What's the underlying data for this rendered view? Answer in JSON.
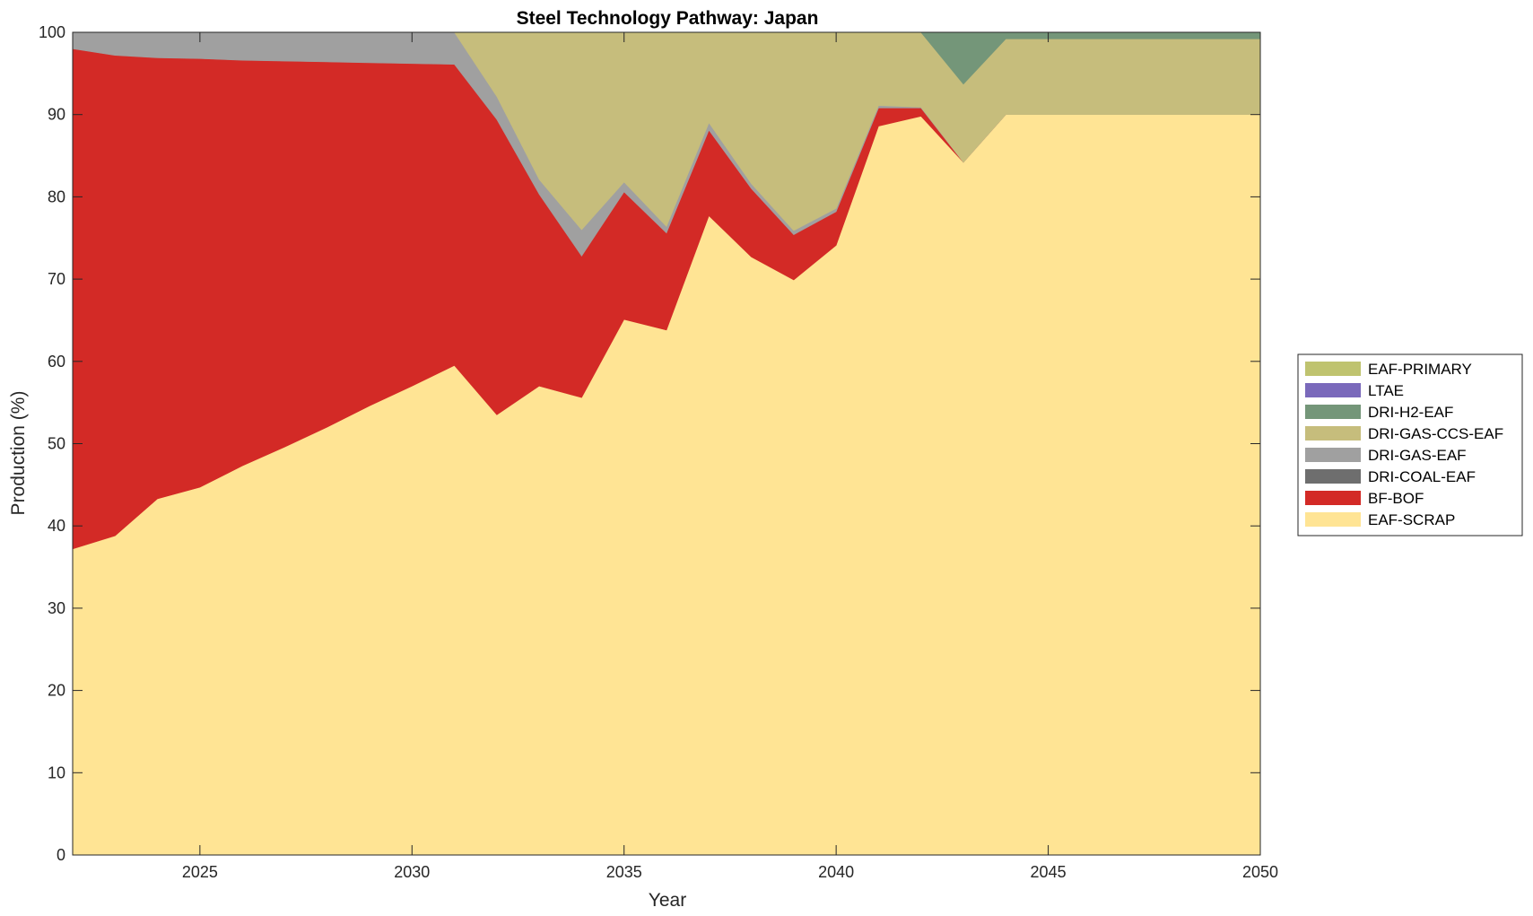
{
  "chart_data": {
    "type": "area",
    "stacked": true,
    "title": "Steel Technology Pathway: Japan",
    "xlabel": "Year",
    "ylabel": "Production (%)",
    "xlim": [
      2022,
      2050
    ],
    "ylim": [
      0,
      100
    ],
    "xticks": [
      2025,
      2030,
      2035,
      2040,
      2045,
      2050
    ],
    "yticks": [
      0,
      10,
      20,
      30,
      40,
      50,
      60,
      70,
      80,
      90,
      100
    ],
    "grid": false,
    "legend_position": "right",
    "x": [
      2022,
      2023,
      2024,
      2025,
      2026,
      2027,
      2028,
      2029,
      2030,
      2031,
      2032,
      2033,
      2034,
      2035,
      2036,
      2037,
      2038,
      2039,
      2040,
      2041,
      2042,
      2043,
      2044,
      2045,
      2046,
      2047,
      2048,
      2049,
      2050
    ],
    "series": [
      {
        "name": "EAF-SCRAP",
        "color": "#FFE494",
        "values": [
          37.2,
          38.8,
          43.3,
          44.7,
          47.3,
          49.6,
          52.0,
          54.6,
          57.0,
          59.5,
          53.5,
          57.0,
          55.6,
          65.1,
          63.8,
          77.7,
          72.7,
          69.9,
          74.1,
          88.6,
          89.8,
          84.2,
          90.0,
          90.0,
          90.0,
          90.0,
          90.0,
          90.0,
          90.0
        ]
      },
      {
        "name": "BF-BOF",
        "color": "#D32A26",
        "values": [
          60.8,
          58.4,
          53.6,
          52.1,
          49.3,
          46.9,
          44.4,
          41.7,
          39.2,
          36.6,
          35.9,
          23.3,
          17.2,
          15.5,
          11.8,
          10.4,
          8.3,
          5.5,
          4.1,
          2.2,
          1.0,
          0.0,
          0.0,
          0.0,
          0.0,
          0.0,
          0.0,
          0.0,
          0.0
        ]
      },
      {
        "name": "DRI-COAL-EAF",
        "color": "#6E6E6E",
        "values": [
          0,
          0,
          0,
          0,
          0,
          0,
          0,
          0,
          0,
          0,
          0,
          0,
          0,
          0,
          0,
          0,
          0,
          0,
          0,
          0,
          0,
          0,
          0,
          0,
          0,
          0,
          0,
          0,
          0
        ]
      },
      {
        "name": "DRI-GAS-EAF",
        "color": "#A0A0A0",
        "values": [
          2.0,
          2.8,
          3.1,
          3.2,
          3.4,
          3.5,
          3.6,
          3.7,
          3.8,
          3.9,
          2.8,
          1.8,
          3.2,
          1.2,
          0.8,
          0.9,
          0.6,
          0.5,
          0.4,
          0.3,
          0.1,
          0.0,
          0.0,
          0.0,
          0.0,
          0.0,
          0.0,
          0.0,
          0.0
        ]
      },
      {
        "name": "DRI-GAS-CCS-EAF",
        "color": "#C6BD7C",
        "values": [
          0.0,
          0.0,
          0.0,
          0.0,
          0.0,
          0.0,
          0.0,
          0.0,
          0.0,
          0.0,
          7.8,
          17.9,
          24.0,
          18.2,
          23.6,
          11.0,
          18.4,
          24.1,
          21.4,
          8.9,
          9.1,
          9.5,
          9.2,
          9.2,
          9.2,
          9.2,
          9.2,
          9.2,
          9.2
        ]
      },
      {
        "name": "DRI-H2-EAF",
        "color": "#749679",
        "values": [
          0,
          0,
          0,
          0,
          0,
          0,
          0,
          0,
          0,
          0,
          0,
          0,
          0,
          0,
          0,
          0,
          0,
          0,
          0,
          0,
          0.0,
          6.3,
          0.8,
          0.8,
          0.8,
          0.8,
          0.8,
          0.8,
          0.8
        ]
      },
      {
        "name": "LTAE",
        "color": "#7A69BB",
        "values": [
          0,
          0,
          0,
          0,
          0,
          0,
          0,
          0,
          0,
          0,
          0,
          0,
          0,
          0,
          0,
          0,
          0,
          0,
          0,
          0,
          0,
          0,
          0,
          0,
          0,
          0,
          0,
          0,
          0
        ]
      },
      {
        "name": "EAF-PRIMARY",
        "color": "#BFC36F",
        "values": [
          0,
          0,
          0,
          0,
          0,
          0,
          0,
          0,
          0,
          0,
          0,
          0,
          0,
          0,
          0,
          0,
          0,
          0,
          0,
          0,
          0,
          0,
          0,
          0,
          0,
          0,
          0,
          0,
          0
        ]
      }
    ],
    "legend_order": [
      "EAF-PRIMARY",
      "LTAE",
      "DRI-H2-EAF",
      "DRI-GAS-CCS-EAF",
      "DRI-GAS-EAF",
      "DRI-COAL-EAF",
      "BF-BOF",
      "EAF-SCRAP"
    ]
  }
}
